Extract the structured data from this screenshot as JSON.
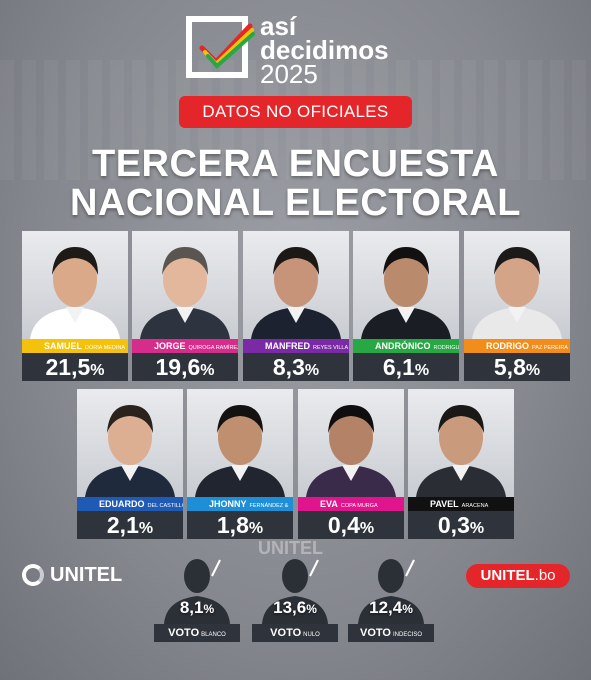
{
  "logo": {
    "line1": "así",
    "line2": "decidimos",
    "year": "2025"
  },
  "badge": "DATOS NO OFICIALES",
  "title": {
    "line1": "TERCERA ENCUESTA",
    "line2": "NACIONAL ELECTORAL"
  },
  "colors": {
    "red": "#e4262a",
    "dark_bar": "#2f343c",
    "yellow": "#f4c20d",
    "purple": "#7b2aa6",
    "green": "#27a844",
    "orange": "#f28c1b",
    "blue": "#1f5bb5",
    "magenta": "#e0148c",
    "black": "#111111"
  },
  "candidates": [
    {
      "first": "SAMUEL",
      "surname": "DORIA MEDINA",
      "pct": "21,5",
      "color": "#f4c20d"
    },
    {
      "first": "JORGE",
      "surname": "QUIROGA RAMÍREZ",
      "pct": "19,6",
      "color": "#d62d8c"
    },
    {
      "first": "MANFRED",
      "surname": "REYES VILLA",
      "pct": "8,3",
      "color": "#7b2aa6"
    },
    {
      "first": "ANDRÓNICO",
      "surname": "RODRIGUEZ L.",
      "pct": "6,1",
      "color": "#27a844"
    },
    {
      "first": "RODRIGO",
      "surname": "PAZ PEREIRA",
      "pct": "5,8",
      "color": "#f28c1b"
    },
    {
      "first": "EDUARDO",
      "surname": "DEL CASTILLO",
      "pct": "2,1",
      "color": "#1f5bb5"
    },
    {
      "first": "JHONNY",
      "surname": "FERNÁNDEZ &",
      "pct": "1,8",
      "color": "#1e8fd6"
    },
    {
      "first": "EVA",
      "surname": "COPA MURGA",
      "pct": "0,4",
      "color": "#e0148c"
    },
    {
      "first": "PAVEL",
      "surname": "ARACENA",
      "pct": "0,3",
      "color": "#111111"
    }
  ],
  "percent_sign": "%",
  "brand": {
    "unitel": "UNITEL",
    "unitel_bo": "UNITEL",
    "domain": ".bo"
  },
  "watermark": "UNITEL",
  "votes": [
    {
      "pct": "8,1",
      "label": "VOTO",
      "sub": "BLANCO"
    },
    {
      "pct": "13,6",
      "label": "VOTO",
      "sub": "NULO"
    },
    {
      "pct": "12,4",
      "label": "VOTO",
      "sub": "INDECISO"
    }
  ]
}
